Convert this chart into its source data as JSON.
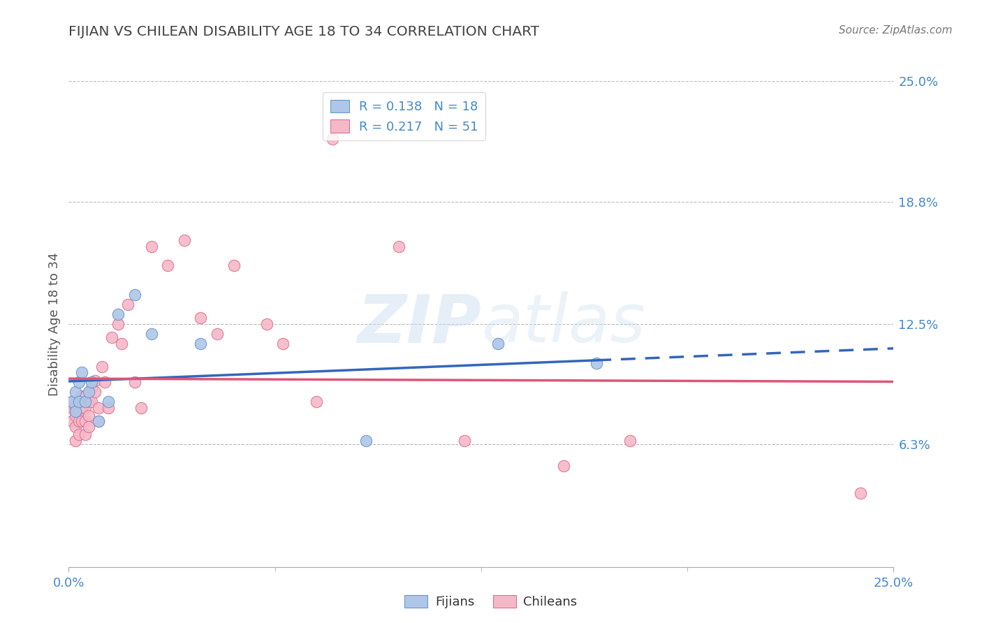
{
  "title": "FIJIAN VS CHILEAN DISABILITY AGE 18 TO 34 CORRELATION CHART",
  "source": "Source: ZipAtlas.com",
  "ylabel": "Disability Age 18 to 34",
  "xmin": 0.0,
  "xmax": 0.25,
  "ymin": 0.0,
  "ymax": 0.25,
  "yticks": [
    0.0,
    0.063,
    0.125,
    0.188,
    0.25
  ],
  "ytick_labels": [
    "",
    "6.3%",
    "12.5%",
    "18.8%",
    "25.0%"
  ],
  "xtick_labels": [
    "0.0%",
    "25.0%"
  ],
  "fijian_color": "#aec6e8",
  "chilean_color": "#f5b8c8",
  "fijian_edge_color": "#6699cc",
  "chilean_edge_color": "#e07090",
  "fijian_line_color": "#3366bb",
  "chilean_line_color": "#dd5577",
  "fijian_R": 0.138,
  "fijian_N": 18,
  "chilean_R": 0.217,
  "chilean_N": 51,
  "fijian_x": [
    0.001,
    0.002,
    0.002,
    0.003,
    0.003,
    0.004,
    0.005,
    0.006,
    0.007,
    0.009,
    0.012,
    0.015,
    0.02,
    0.025,
    0.04,
    0.09,
    0.13,
    0.16
  ],
  "fijian_y": [
    0.085,
    0.09,
    0.08,
    0.095,
    0.085,
    0.1,
    0.085,
    0.09,
    0.095,
    0.075,
    0.085,
    0.13,
    0.14,
    0.12,
    0.115,
    0.065,
    0.115,
    0.105
  ],
  "chilean_x": [
    0.001,
    0.001,
    0.001,
    0.002,
    0.002,
    0.002,
    0.002,
    0.003,
    0.003,
    0.003,
    0.003,
    0.004,
    0.004,
    0.004,
    0.005,
    0.005,
    0.005,
    0.005,
    0.006,
    0.006,
    0.006,
    0.007,
    0.007,
    0.008,
    0.008,
    0.009,
    0.009,
    0.01,
    0.011,
    0.012,
    0.013,
    0.015,
    0.016,
    0.018,
    0.02,
    0.022,
    0.025,
    0.03,
    0.035,
    0.04,
    0.045,
    0.05,
    0.06,
    0.065,
    0.075,
    0.08,
    0.1,
    0.12,
    0.15,
    0.17,
    0.24
  ],
  "chilean_y": [
    0.085,
    0.082,
    0.075,
    0.082,
    0.078,
    0.072,
    0.065,
    0.085,
    0.08,
    0.075,
    0.068,
    0.088,
    0.082,
    0.075,
    0.088,
    0.082,
    0.075,
    0.068,
    0.085,
    0.078,
    0.072,
    0.092,
    0.085,
    0.096,
    0.09,
    0.082,
    0.075,
    0.103,
    0.095,
    0.082,
    0.118,
    0.125,
    0.115,
    0.135,
    0.095,
    0.082,
    0.165,
    0.155,
    0.168,
    0.128,
    0.12,
    0.155,
    0.125,
    0.115,
    0.085,
    0.22,
    0.165,
    0.065,
    0.052,
    0.065,
    0.038
  ],
  "watermark_line1": "ZIP",
  "watermark_line2": "atlas",
  "background_color": "#ffffff",
  "grid_color": "#bbbbbb",
  "title_color": "#444444",
  "label_color": "#4488cc",
  "legend_label_color": "#4488cc"
}
